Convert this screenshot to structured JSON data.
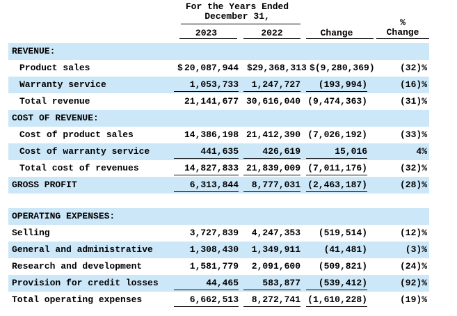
{
  "colors": {
    "row_highlight": "#CCE7F8",
    "text": "#000000",
    "background": "#FFFFFF"
  },
  "header": {
    "period_line1": "For the Years Ended",
    "period_line2": "December 31,",
    "col_2023": "2023",
    "col_2022": "2022",
    "col_change": "Change",
    "col_pct_line1": "%",
    "col_pct_line2": "Change"
  },
  "rows": [
    {
      "label": "REVENUE:",
      "section": true,
      "blue": true
    },
    {
      "label": "Product sales",
      "indent": true,
      "currency": "$",
      "v2023": "20,087,944",
      "v2022": "29,368,313",
      "change": "(9,280,369)",
      "pct": "(32)%"
    },
    {
      "label": "Warranty service",
      "indent": true,
      "blue": true,
      "underline": true,
      "v2023": "1,053,733",
      "v2022": "1,247,727",
      "change": "(193,994)",
      "pct": "(16)%"
    },
    {
      "label": "Total revenue",
      "indent": true,
      "v2023": "21,141,677",
      "v2022": "30,616,040",
      "change": "(9,474,363)",
      "pct": "(31)%"
    },
    {
      "label": "COST OF REVENUE:",
      "section": true,
      "blue": true
    },
    {
      "label": "Cost of product sales",
      "indent": true,
      "v2023": "14,386,198",
      "v2022": "21,412,390",
      "change": "(7,026,192)",
      "pct": "(33)%"
    },
    {
      "label": "Cost of warranty service",
      "indent": true,
      "blue": true,
      "underline": true,
      "v2023": "441,635",
      "v2022": "426,619",
      "change": "15,016",
      "pct": "4%"
    },
    {
      "label": "Total cost of revenues",
      "indent": true,
      "underline": true,
      "v2023": "14,827,833",
      "v2022": "21,839,009",
      "change": "(7,011,176)",
      "pct": "(32)%"
    },
    {
      "label": "GROSS PROFIT",
      "section": true,
      "blue": true,
      "underline": true,
      "v2023": "6,313,844",
      "v2022": "8,777,031",
      "change": "(2,463,187)",
      "pct": "(28)%"
    },
    {
      "spacer": true
    },
    {
      "label": "OPERATING EXPENSES:",
      "section": true,
      "blue": true
    },
    {
      "label": "Selling",
      "v2023": "3,727,839",
      "v2022": "4,247,353",
      "change": "(519,514)",
      "pct": "(12)%"
    },
    {
      "label": "General and administrative",
      "blue": true,
      "v2023": "1,308,430",
      "v2022": "1,349,911",
      "change": "(41,481)",
      "pct": "(3)%"
    },
    {
      "label": "Research and development",
      "v2023": "1,581,779",
      "v2022": "2,091,600",
      "change": "(509,821)",
      "pct": "(24)%"
    },
    {
      "label": "Provision for credit losses",
      "blue": true,
      "underline": true,
      "v2023": "44,465",
      "v2022": "583,877",
      "change": "(539,412)",
      "pct": "(92)%"
    },
    {
      "label": "Total operating expenses",
      "underline": true,
      "v2023": "6,662,513",
      "v2022": "8,272,741",
      "change": "(1,610,228)",
      "pct": "(19)%"
    }
  ]
}
